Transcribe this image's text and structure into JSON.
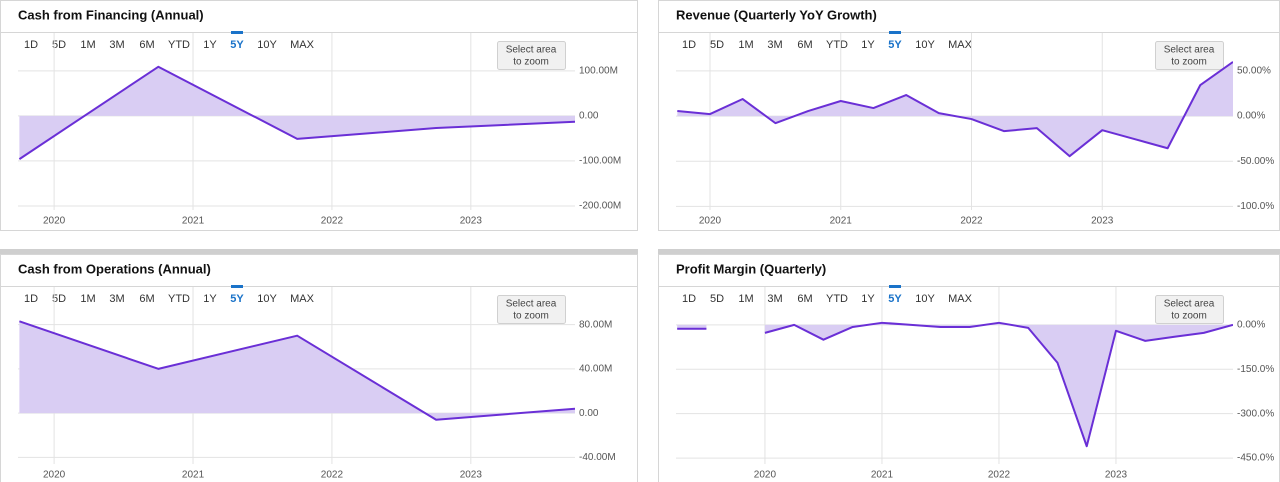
{
  "chart_data": [
    {
      "type": "area",
      "title": "Cash from Financing (Annual)",
      "range_buttons": [
        "1D",
        "5D",
        "1M",
        "3M",
        "6M",
        "YTD",
        "1Y",
        "5Y",
        "10Y",
        "MAX"
      ],
      "selected_range": "5Y",
      "zoom_hint": [
        "Select area",
        "to zoom"
      ],
      "x": [
        2019.75,
        2020.75,
        2021.75,
        2022.75,
        2023.75
      ],
      "series": [
        {
          "color": "#6a2fd6",
          "fill": "#d9cdf3",
          "values": [
            -96,
            109,
            -51,
            -27,
            -13
          ]
        }
      ],
      "xlim": [
        2019.74,
        2023.75
      ],
      "xticks": [
        2020,
        2021,
        2022,
        2023
      ],
      "ylim": [
        -209,
        184
      ],
      "yticks": [
        {
          "value": 100,
          "label": "100.00M"
        },
        {
          "value": 0,
          "label": "0.00"
        },
        {
          "value": -100,
          "label": "-100.00M"
        },
        {
          "value": -200,
          "label": "-200.00M"
        }
      ],
      "grid": true
    },
    {
      "type": "area",
      "title": "Revenue (Quarterly YoY Growth)",
      "range_buttons": [
        "1D",
        "5D",
        "1M",
        "3M",
        "6M",
        "YTD",
        "1Y",
        "5Y",
        "10Y",
        "MAX"
      ],
      "selected_range": "5Y",
      "zoom_hint": [
        "Select area",
        "to zoom"
      ],
      "x": [
        2019.75,
        2020,
        2020.25,
        2020.5,
        2020.75,
        2021,
        2021.25,
        2021.5,
        2021.75,
        2022,
        2022.25,
        2022.5,
        2022.75,
        2023,
        2023.25,
        2023.5,
        2023.75,
        2024
      ],
      "series": [
        {
          "color": "#6a2fd6",
          "fill": "#d9cdf3",
          "values": [
            5.6,
            2.2,
            18.9,
            -7.8,
            5.6,
            16.7,
            8.9,
            23.3,
            3.3,
            -3.3,
            -16.7,
            -13.3,
            -44.4,
            -15.6,
            -25.6,
            -35.6,
            34.4,
            60
          ]
        }
      ],
      "xlim": [
        2019.74,
        2024
      ],
      "xticks": [
        2020,
        2021,
        2022,
        2023
      ],
      "ylim": [
        -104,
        92
      ],
      "yticks": [
        {
          "value": 50,
          "label": "50.00%"
        },
        {
          "value": 0,
          "label": "0.00%"
        },
        {
          "value": -50,
          "label": "-50.00%"
        },
        {
          "value": -100,
          "label": "-100.0%"
        }
      ],
      "grid": true
    },
    {
      "type": "area",
      "title": "Cash from Operations (Annual)",
      "range_buttons": [
        "1D",
        "5D",
        "1M",
        "3M",
        "6M",
        "YTD",
        "1Y",
        "5Y",
        "10Y",
        "MAX"
      ],
      "selected_range": "5Y",
      "zoom_hint": [
        "Select area",
        "to zoom"
      ],
      "x": [
        2019.75,
        2020.75,
        2021.75,
        2022.75,
        2023.75
      ],
      "series": [
        {
          "color": "#6a2fd6",
          "fill": "#d9cdf3",
          "values": [
            83,
            40,
            70,
            -6,
            4
          ]
        }
      ],
      "xlim": [
        2019.74,
        2023.75
      ],
      "xticks": [
        2020,
        2021,
        2022,
        2023
      ],
      "ylim": [
        -46,
        114
      ],
      "yticks": [
        {
          "value": 80,
          "label": "80.00M"
        },
        {
          "value": 40,
          "label": "40.00M"
        },
        {
          "value": 0,
          "label": "0.00"
        },
        {
          "value": -40,
          "label": "-40.00M"
        }
      ],
      "grid": true
    },
    {
      "type": "area",
      "title": "Profit Margin (Quarterly)",
      "range_buttons": [
        "1D",
        "5D",
        "1M",
        "3M",
        "6M",
        "YTD",
        "1Y",
        "5Y",
        "10Y",
        "MAX"
      ],
      "selected_range": "5Y",
      "zoom_hint": [
        "Select area",
        "to zoom"
      ],
      "x": [
        2019.25,
        2019.5,
        2019.75,
        2020,
        2020.25,
        2020.5,
        2020.75,
        2021,
        2021.25,
        2021.5,
        2021.75,
        2022,
        2022.25,
        2022.5,
        2022.75,
        2023,
        2023.25,
        2023.5,
        2023.75,
        2024
      ],
      "series": [
        {
          "color": "#6a2fd6",
          "fill": "#d9cdf3",
          "values": [
            -13,
            -13,
            null,
            -27,
            0,
            -50,
            -7,
            7,
            0,
            -7,
            -7,
            7,
            -10,
            -128,
            -410,
            -20,
            -54,
            -40,
            -27,
            0
          ]
        }
      ],
      "xlim": [
        2019.24,
        2024
      ],
      "xticks": [
        2020,
        2021,
        2022,
        2023
      ],
      "ylim": [
        -470,
        128
      ],
      "yticks": [
        {
          "value": 0,
          "label": "0.00%"
        },
        {
          "value": -150,
          "label": "-150.0%"
        },
        {
          "value": -300,
          "label": "-300.0%"
        },
        {
          "value": -450,
          "label": "-450.0%"
        }
      ],
      "grid": true
    }
  ]
}
